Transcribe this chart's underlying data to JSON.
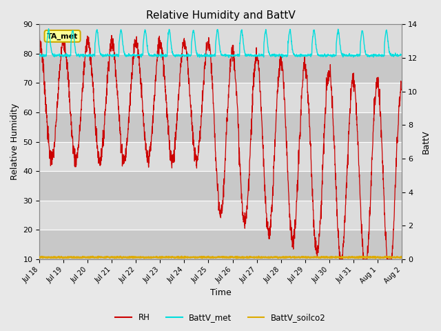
{
  "title": "Relative Humidity and BattV",
  "ylabel_left": "Relative Humidity",
  "ylabel_right": "BattV",
  "xlabel": "Time",
  "ylim_left": [
    10,
    90
  ],
  "ylim_right": [
    0,
    14
  ],
  "yticks_left": [
    10,
    20,
    30,
    40,
    50,
    60,
    70,
    80,
    90
  ],
  "yticks_right": [
    0,
    2,
    4,
    6,
    8,
    10,
    12,
    14
  ],
  "bg_color": "#e8e8e8",
  "band_colors": [
    "#dcdcdc",
    "#c8c8c8"
  ],
  "annotation_text": "TA_met",
  "annotation_bg": "#ffff99",
  "annotation_border": "#ccaa00",
  "rh_color": "#cc0000",
  "batt_met_color": "#00dddd",
  "batt_soilco2_color": "#ddaa00",
  "xtick_labels": [
    "Jul 18",
    "Jul 19",
    "Jul 20",
    "Jul 21",
    "Jul 22",
    "Jul 23",
    "Jul 24",
    "Jul 25",
    "Jul 26",
    "Jul 27",
    "Jul 28",
    "Jul 29",
    "Jul 30",
    "Jul 31",
    "Aug 1",
    "Aug 2"
  ],
  "xtick_positions": [
    0,
    1,
    2,
    3,
    4,
    5,
    6,
    7,
    8,
    9,
    10,
    11,
    12,
    13,
    14,
    15
  ]
}
